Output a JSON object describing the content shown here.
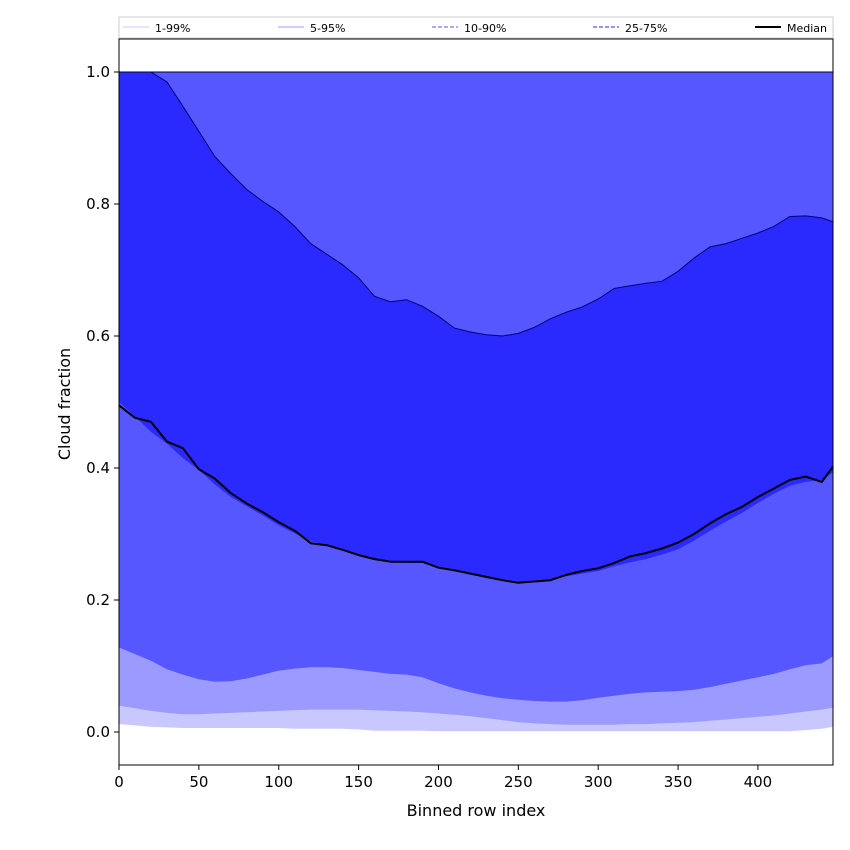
{
  "chart_data": {
    "type": "area",
    "xlabel": "Binned row index",
    "ylabel": "Cloud fraction",
    "xlim": [
      0,
      447
    ],
    "ylim": [
      -0.05,
      1.05
    ],
    "xticks": [
      "0",
      "50",
      "100",
      "150",
      "200",
      "250",
      "300",
      "350",
      "400"
    ],
    "yticks": [
      "0.0",
      "0.2",
      "0.4",
      "0.6",
      "0.8",
      "1.0"
    ],
    "grid": false,
    "legend_position": "top",
    "x": [
      0,
      10,
      20,
      30,
      40,
      50,
      60,
      70,
      80,
      90,
      100,
      110,
      120,
      130,
      140,
      150,
      160,
      170,
      180,
      190,
      200,
      210,
      220,
      230,
      240,
      250,
      260,
      270,
      280,
      290,
      300,
      310,
      320,
      330,
      340,
      350,
      360,
      370,
      380,
      390,
      400,
      410,
      420,
      430,
      440,
      447
    ],
    "bands": [
      {
        "name": "1-99%",
        "color": "#c8c8ff",
        "line_style": "solid",
        "lower": [
          0.012,
          0.01,
          0.008,
          0.007,
          0.006,
          0.006,
          0.006,
          0.006,
          0.006,
          0.006,
          0.006,
          0.005,
          0.005,
          0.005,
          0.005,
          0.004,
          0.002,
          0.002,
          0.002,
          0.002,
          0.001,
          0.001,
          0.001,
          0.001,
          0.001,
          0.001,
          0.001,
          0.001,
          0.001,
          0.001,
          0.001,
          0.001,
          0.001,
          0.001,
          0.001,
          0.001,
          0.001,
          0.001,
          0.001,
          0.001,
          0.001,
          0.001,
          0.001,
          0.003,
          0.005,
          0.008
        ],
        "upper": [
          1.0,
          1.0,
          1.0,
          1.0,
          1.0,
          1.0,
          1.0,
          1.0,
          1.0,
          1.0,
          1.0,
          1.0,
          1.0,
          1.0,
          1.0,
          1.0,
          1.0,
          1.0,
          1.0,
          1.0,
          1.0,
          1.0,
          1.0,
          1.0,
          1.0,
          1.0,
          1.0,
          1.0,
          1.0,
          1.0,
          1.0,
          1.0,
          1.0,
          1.0,
          1.0,
          1.0,
          1.0,
          1.0,
          1.0,
          1.0,
          1.0,
          1.0,
          1.0,
          1.0,
          1.0,
          1.0
        ]
      },
      {
        "name": "5-95%",
        "color": "#9b9bff",
        "line_style": "solid",
        "lower": [
          0.04,
          0.036,
          0.032,
          0.029,
          0.027,
          0.027,
          0.028,
          0.029,
          0.03,
          0.031,
          0.032,
          0.033,
          0.034,
          0.034,
          0.034,
          0.034,
          0.033,
          0.032,
          0.031,
          0.03,
          0.028,
          0.026,
          0.024,
          0.021,
          0.018,
          0.015,
          0.013,
          0.012,
          0.011,
          0.011,
          0.011,
          0.011,
          0.012,
          0.012,
          0.013,
          0.014,
          0.015,
          0.017,
          0.019,
          0.021,
          0.023,
          0.025,
          0.028,
          0.031,
          0.034,
          0.037
        ],
        "upper": [
          1.0,
          1.0,
          1.0,
          1.0,
          1.0,
          1.0,
          1.0,
          1.0,
          1.0,
          1.0,
          1.0,
          1.0,
          1.0,
          1.0,
          1.0,
          1.0,
          1.0,
          1.0,
          1.0,
          1.0,
          1.0,
          1.0,
          1.0,
          1.0,
          1.0,
          1.0,
          1.0,
          1.0,
          1.0,
          1.0,
          1.0,
          1.0,
          1.0,
          1.0,
          1.0,
          1.0,
          1.0,
          1.0,
          1.0,
          1.0,
          1.0,
          1.0,
          1.0,
          1.0,
          1.0,
          1.0
        ]
      },
      {
        "name": "10-90%",
        "color": "#5757ff",
        "line_style": "dashed",
        "lower": [
          0.128,
          0.118,
          0.108,
          0.095,
          0.087,
          0.08,
          0.076,
          0.077,
          0.081,
          0.087,
          0.093,
          0.096,
          0.098,
          0.098,
          0.097,
          0.094,
          0.091,
          0.088,
          0.087,
          0.083,
          0.074,
          0.066,
          0.06,
          0.055,
          0.051,
          0.049,
          0.047,
          0.046,
          0.046,
          0.048,
          0.052,
          0.055,
          0.058,
          0.06,
          0.061,
          0.062,
          0.064,
          0.068,
          0.073,
          0.078,
          0.083,
          0.088,
          0.095,
          0.101,
          0.104,
          0.115
        ],
        "upper": [
          1.0,
          1.0,
          1.0,
          1.0,
          1.0,
          1.0,
          1.0,
          1.0,
          1.0,
          1.0,
          1.0,
          1.0,
          1.0,
          1.0,
          1.0,
          1.0,
          1.0,
          1.0,
          1.0,
          1.0,
          1.0,
          1.0,
          1.0,
          1.0,
          1.0,
          1.0,
          1.0,
          1.0,
          1.0,
          1.0,
          1.0,
          1.0,
          1.0,
          1.0,
          1.0,
          1.0,
          1.0,
          1.0,
          1.0,
          1.0,
          1.0,
          1.0,
          1.0,
          1.0,
          1.0,
          1.0
        ]
      },
      {
        "name": "25-75%",
        "color": "#2a2aff",
        "line_style": "dashed",
        "lower": [
          0.5,
          0.478,
          0.455,
          0.437,
          0.415,
          0.397,
          0.375,
          0.356,
          0.342,
          0.328,
          0.313,
          0.301,
          0.289,
          0.283,
          0.275,
          0.268,
          0.262,
          0.257,
          0.256,
          0.256,
          0.249,
          0.244,
          0.239,
          0.233,
          0.229,
          0.227,
          0.228,
          0.23,
          0.236,
          0.24,
          0.244,
          0.251,
          0.257,
          0.262,
          0.269,
          0.277,
          0.29,
          0.305,
          0.319,
          0.332,
          0.347,
          0.361,
          0.373,
          0.379,
          0.382,
          0.393
        ],
        "upper": [
          1.0,
          1.0,
          1.0,
          0.985,
          0.948,
          0.91,
          0.872,
          0.846,
          0.822,
          0.804,
          0.788,
          0.766,
          0.74,
          0.724,
          0.708,
          0.688,
          0.66,
          0.652,
          0.655,
          0.645,
          0.63,
          0.612,
          0.606,
          0.602,
          0.6,
          0.604,
          0.613,
          0.626,
          0.636,
          0.644,
          0.656,
          0.672,
          0.676,
          0.68,
          0.683,
          0.698,
          0.718,
          0.735,
          0.74,
          0.748,
          0.756,
          0.766,
          0.781,
          0.782,
          0.779,
          0.773
        ]
      }
    ],
    "series": [
      {
        "name": "Median",
        "color": "#000000",
        "values": [
          0.495,
          0.476,
          0.47,
          0.44,
          0.43,
          0.398,
          0.384,
          0.362,
          0.346,
          0.333,
          0.318,
          0.305,
          0.286,
          0.283,
          0.276,
          0.268,
          0.262,
          0.258,
          0.258,
          0.258,
          0.249,
          0.245,
          0.24,
          0.235,
          0.23,
          0.226,
          0.228,
          0.23,
          0.238,
          0.244,
          0.248,
          0.256,
          0.266,
          0.271,
          0.278,
          0.287,
          0.3,
          0.316,
          0.33,
          0.341,
          0.356,
          0.369,
          0.382,
          0.387,
          0.379,
          0.402
        ]
      }
    ]
  }
}
